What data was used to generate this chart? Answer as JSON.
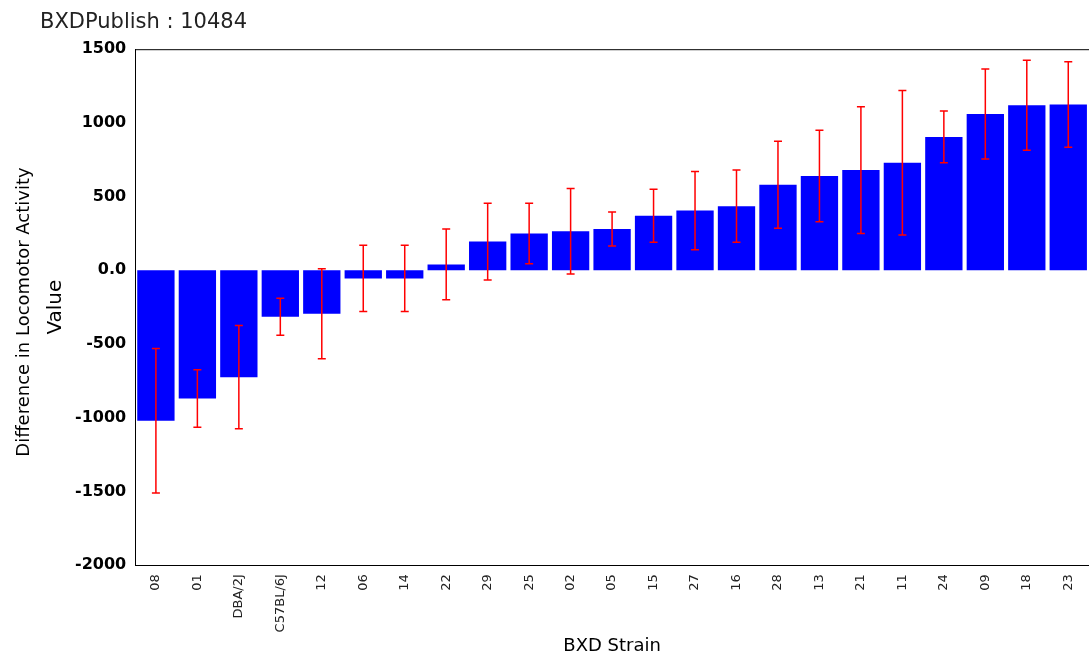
{
  "chart_data": {
    "type": "bar",
    "title": "BXDPublish : 10484",
    "xlabel": "BXD Strain",
    "ylabel": "Value",
    "annotations": [
      "Difference in Locomotor Activity"
    ],
    "categories": [
      "08",
      "01",
      "DBA/2J",
      "C57BL/6J",
      "12",
      "06",
      "14",
      "22",
      "29",
      "25",
      "02",
      "05",
      "15",
      "27",
      "16",
      "28",
      "13",
      "21",
      "11",
      "24",
      "09",
      "18",
      "23"
    ],
    "values": [
      -1020,
      -870,
      -725,
      -315,
      -295,
      -55,
      -55,
      40,
      195,
      250,
      265,
      280,
      370,
      405,
      435,
      580,
      640,
      680,
      730,
      905,
      1060,
      1120,
      1125
    ],
    "errors": [
      490,
      195,
      350,
      125,
      305,
      225,
      225,
      240,
      260,
      205,
      290,
      115,
      180,
      265,
      245,
      295,
      310,
      430,
      490,
      175,
      305,
      305,
      290
    ],
    "color": "#0000ff",
    "ylim": [
      -2000,
      1500
    ],
    "yticks": [
      -2000,
      -1500,
      -1000,
      -500,
      {
        "value": 0,
        "label": "0.0"
      },
      500,
      1000,
      1500
    ],
    "grid": false,
    "legend": false
  }
}
